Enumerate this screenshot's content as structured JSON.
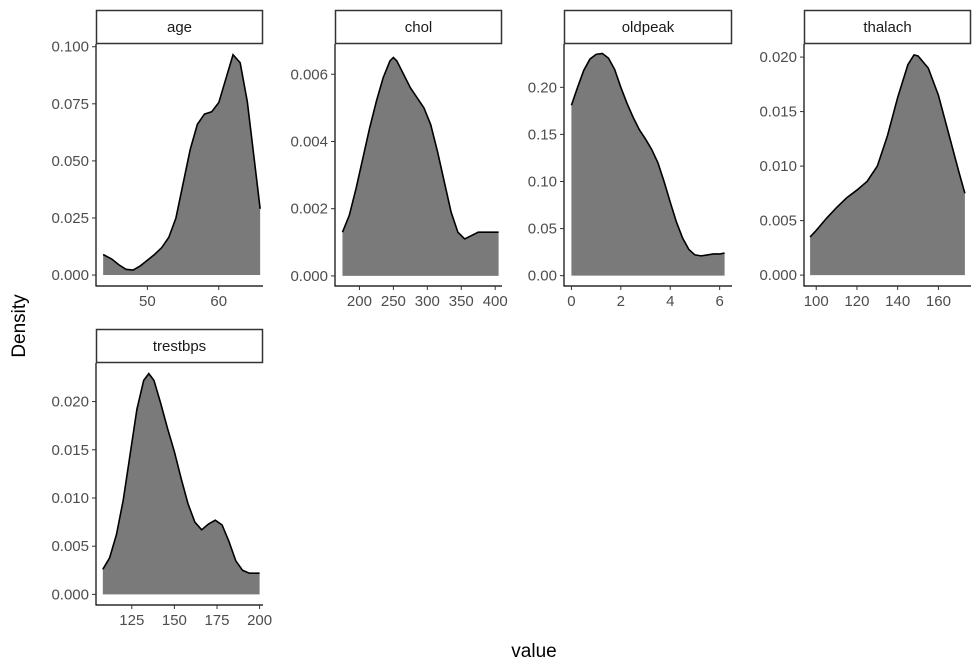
{
  "chart_data": {
    "type": "area",
    "xlabel": "value",
    "ylabel": "Density",
    "fill_color": "#7a7a7a",
    "line_color": "#000000",
    "grid": false,
    "panels": [
      {
        "name": "age",
        "xlim": [
          42.8,
          66.2
        ],
        "ylim": [
          -0.0048,
          0.1012
        ],
        "x_ticks": [
          50,
          60
        ],
        "x_tick_labels": [
          "50",
          "60"
        ],
        "y_ticks": [
          0,
          0.025,
          0.05,
          0.075,
          0.1
        ],
        "y_tick_labels": [
          "0.000",
          "0.025",
          "0.050",
          "0.075",
          "0.100"
        ],
        "x": [
          43.8,
          45,
          46,
          47,
          48,
          49,
          50,
          51,
          52,
          53,
          54,
          55,
          56,
          57,
          58,
          59,
          60,
          61,
          62,
          63,
          64,
          65,
          65.8
        ],
        "y": [
          0.009,
          0.007,
          0.0045,
          0.0025,
          0.0022,
          0.004,
          0.0065,
          0.009,
          0.012,
          0.0165,
          0.025,
          0.04,
          0.055,
          0.066,
          0.0705,
          0.0715,
          0.0755,
          0.086,
          0.0965,
          0.093,
          0.076,
          0.05,
          0.029
        ]
      },
      {
        "name": "chol",
        "xlim": [
          164,
          410
        ],
        "ylim": [
          -0.0003,
          0.0069
        ],
        "x_ticks": [
          200,
          250,
          300,
          350,
          400
        ],
        "x_tick_labels": [
          "200",
          "250",
          "300",
          "350",
          "400"
        ],
        "y_ticks": [
          0,
          0.002,
          0.004,
          0.006
        ],
        "y_tick_labels": [
          "0.000",
          "0.002",
          "0.004",
          "0.006"
        ],
        "x": [
          175,
          185,
          195,
          205,
          215,
          225,
          235,
          245,
          250,
          255,
          265,
          275,
          285,
          295,
          305,
          315,
          325,
          335,
          345,
          355,
          365,
          375,
          385,
          395,
          405
        ],
        "y": [
          0.0013,
          0.0018,
          0.0026,
          0.0035,
          0.0044,
          0.0052,
          0.0059,
          0.0064,
          0.0065,
          0.0064,
          0.006,
          0.0056,
          0.0053,
          0.005,
          0.0045,
          0.0037,
          0.0028,
          0.0019,
          0.0013,
          0.0011,
          0.0012,
          0.0013,
          0.0013,
          0.0013,
          0.0013
        ]
      },
      {
        "name": "oldpeak",
        "xlim": [
          -0.3,
          6.5
        ],
        "ylim": [
          -0.011,
          0.246
        ],
        "x_ticks": [
          0,
          2,
          4,
          6
        ],
        "x_tick_labels": [
          "0",
          "2",
          "4",
          "6"
        ],
        "y_ticks": [
          0,
          0.05,
          0.1,
          0.15,
          0.2
        ],
        "y_tick_labels": [
          "0.00",
          "0.05",
          "0.10",
          "0.15",
          "0.20"
        ],
        "x": [
          0,
          0.25,
          0.5,
          0.75,
          1,
          1.25,
          1.5,
          1.75,
          2,
          2.25,
          2.5,
          2.75,
          3,
          3.25,
          3.5,
          3.75,
          4,
          4.25,
          4.5,
          4.75,
          5,
          5.25,
          5.5,
          5.75,
          6,
          6.2
        ],
        "y": [
          0.181,
          0.2,
          0.218,
          0.23,
          0.235,
          0.236,
          0.231,
          0.219,
          0.2,
          0.183,
          0.168,
          0.155,
          0.145,
          0.134,
          0.12,
          0.1,
          0.078,
          0.057,
          0.04,
          0.028,
          0.022,
          0.021,
          0.022,
          0.023,
          0.023,
          0.024
        ]
      },
      {
        "name": "thalach",
        "xlim": [
          94,
          176
        ],
        "ylim": [
          -0.001,
          0.0212
        ],
        "x_ticks": [
          100,
          120,
          140,
          160
        ],
        "x_tick_labels": [
          "100",
          "120",
          "140",
          "160"
        ],
        "y_ticks": [
          0,
          0.005,
          0.01,
          0.015,
          0.02
        ],
        "y_tick_labels": [
          "0.000",
          "0.005",
          "0.010",
          "0.015",
          "0.020"
        ],
        "x": [
          97,
          100,
          105,
          110,
          115,
          120,
          125,
          130,
          135,
          140,
          145,
          148,
          150,
          155,
          160,
          165,
          170,
          173
        ],
        "y": [
          0.0035,
          0.0041,
          0.0052,
          0.0062,
          0.0071,
          0.0078,
          0.0086,
          0.01,
          0.0128,
          0.0163,
          0.0193,
          0.0202,
          0.0201,
          0.019,
          0.0165,
          0.013,
          0.0095,
          0.0075
        ]
      },
      {
        "name": "trestbps",
        "xlim": [
          104,
          202
        ],
        "ylim": [
          -0.0011,
          0.024
        ],
        "x_ticks": [
          125,
          150,
          175,
          200
        ],
        "x_tick_labels": [
          "125",
          "150",
          "175",
          "200"
        ],
        "y_ticks": [
          0,
          0.005,
          0.01,
          0.015,
          0.02
        ],
        "y_tick_labels": [
          "0.000",
          "0.005",
          "0.010",
          "0.015",
          "0.020"
        ],
        "x": [
          108,
          112,
          116,
          120,
          124,
          128,
          132,
          135,
          138,
          142,
          146,
          150,
          154,
          158,
          162,
          166,
          170,
          174,
          178,
          182,
          186,
          190,
          194,
          198,
          200
        ],
        "y": [
          0.0026,
          0.0038,
          0.0062,
          0.0098,
          0.0145,
          0.0192,
          0.0222,
          0.0229,
          0.0222,
          0.0198,
          0.0172,
          0.0148,
          0.012,
          0.0094,
          0.0075,
          0.0067,
          0.0073,
          0.0077,
          0.0072,
          0.0055,
          0.0035,
          0.0025,
          0.0022,
          0.0022,
          0.0022
        ]
      }
    ]
  }
}
